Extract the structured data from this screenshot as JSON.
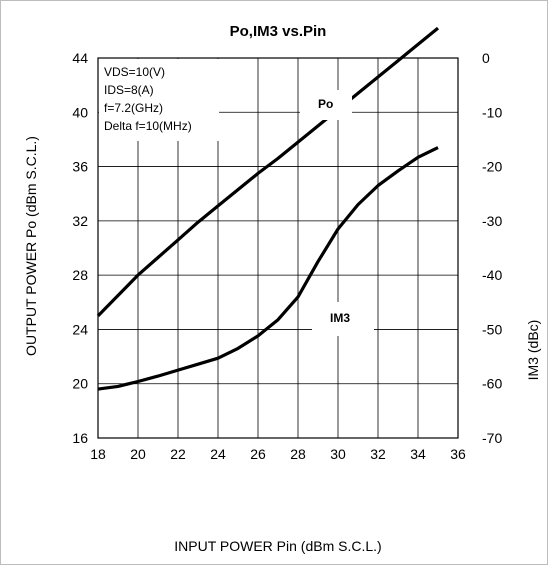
{
  "chart_data": {
    "type": "line",
    "title": "Po,IM3 vs.Pin",
    "xlabel": "INPUT POWER Pin (dBm S.C.L.)",
    "ylabel": "OUTPUT POWER Po (dBm S.C.L.)",
    "y2label": "IM3 (dBc)",
    "xlim": [
      18,
      36
    ],
    "ylim": [
      16,
      44
    ],
    "y2lim": [
      -70,
      0
    ],
    "xticks": [
      "18",
      "20",
      "22",
      "24",
      "26",
      "28",
      "30",
      "32",
      "34",
      "36"
    ],
    "yticks": [
      "16",
      "20",
      "24",
      "28",
      "32",
      "36",
      "40",
      "44"
    ],
    "y2ticks": [
      "-70",
      "-60",
      "-50",
      "-40",
      "-30",
      "-20",
      "-10",
      "0"
    ],
    "grid": true,
    "annotations": [
      "VDS=10(V)",
      "IDS=8(A)",
      "f=7.2(GHz)",
      "Delta f=10(MHz)"
    ],
    "series": [
      {
        "name": "Po",
        "axis": "left",
        "x": [
          18,
          19,
          20,
          21,
          22,
          23,
          24,
          25,
          26,
          27,
          28,
          29,
          30,
          31,
          32,
          33,
          34,
          35
        ],
        "values": [
          25.0,
          26.5,
          28.0,
          29.3,
          30.6,
          31.9,
          33.1,
          34.3,
          35.5,
          36.6,
          37.8,
          39.0,
          40.2,
          41.4,
          42.6,
          43.8,
          45.0,
          46.2
        ]
      },
      {
        "name": "IM3",
        "axis": "right",
        "x": [
          18,
          19,
          20,
          21,
          22,
          23,
          24,
          25,
          26,
          27,
          28,
          29,
          30,
          31,
          32,
          33,
          34,
          35
        ],
        "values": [
          -61,
          -60.5,
          -59.6,
          -58.6,
          -57.5,
          -56.4,
          -55.3,
          -53.5,
          -51.2,
          -48.2,
          -44.0,
          -37.5,
          -31.5,
          -27.0,
          -23.5,
          -20.8,
          -18.3,
          -16.5
        ]
      }
    ]
  }
}
